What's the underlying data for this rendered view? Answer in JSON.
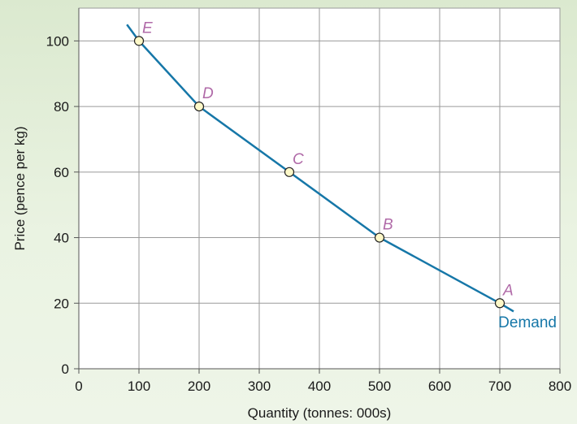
{
  "chart_data": {
    "type": "line",
    "xlabel": "Quantity (tonnes: 000s)",
    "ylabel": "Price (pence per kg)",
    "xlim": [
      0,
      800
    ],
    "ylim": [
      0,
      110
    ],
    "x_ticks": [
      0,
      100,
      200,
      300,
      400,
      500,
      600,
      700,
      800
    ],
    "y_ticks": [
      0,
      20,
      40,
      60,
      80,
      100
    ],
    "grid": true,
    "series": [
      {
        "name": "Demand",
        "color": "#1677a8",
        "line_x": [
          80,
          100,
          200,
          350,
          500,
          700,
          723
        ],
        "line_y": [
          105,
          100,
          80,
          60,
          40,
          20,
          17.5
        ],
        "points": [
          {
            "label": "E",
            "x": 100,
            "y": 100
          },
          {
            "label": "D",
            "x": 200,
            "y": 80
          },
          {
            "label": "C",
            "x": 350,
            "y": 60
          },
          {
            "label": "B",
            "x": 500,
            "y": 40
          },
          {
            "label": "A",
            "x": 700,
            "y": 20
          }
        ]
      }
    ],
    "point_label_color": "#b06aa8",
    "marker_fill": "#fdf8c8"
  }
}
